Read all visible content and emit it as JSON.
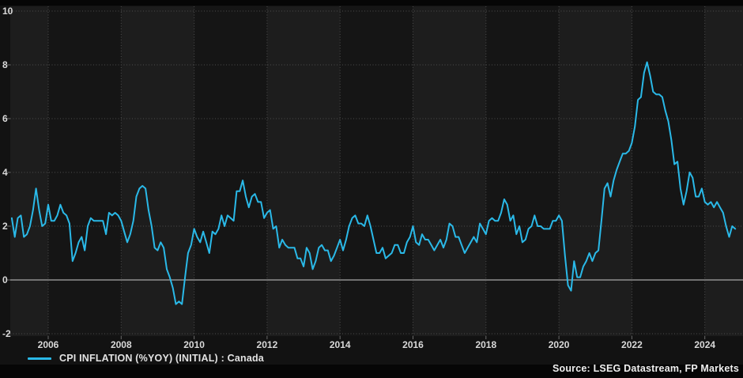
{
  "chart_data": {
    "type": "line",
    "title": "",
    "frequency": "monthly",
    "x_start": "2005-01",
    "x_end": "2024-11",
    "x_ticks": [
      2006,
      2008,
      2010,
      2012,
      2014,
      2016,
      2018,
      2020,
      2022,
      2024
    ],
    "y_ticks": [
      10,
      8,
      6,
      4,
      2,
      0,
      -2
    ],
    "ylim": [
      -2.7,
      10.3
    ],
    "grid": "dotted",
    "legend_position": "bottom-left",
    "series": [
      {
        "name": "CPI INFLATION (%YOY) (INITIAL) : Canada",
        "color": "#2ab9e8",
        "values": [
          2.3,
          1.6,
          2.3,
          2.4,
          1.6,
          1.7,
          2.0,
          2.6,
          3.4,
          2.6,
          2.0,
          2.1,
          2.8,
          2.2,
          2.2,
          2.4,
          2.8,
          2.5,
          2.4,
          2.1,
          0.7,
          1.0,
          1.4,
          1.6,
          1.1,
          2.0,
          2.3,
          2.2,
          2.2,
          2.2,
          2.2,
          1.7,
          2.5,
          2.4,
          2.5,
          2.4,
          2.2,
          1.8,
          1.4,
          1.7,
          2.2,
          3.1,
          3.4,
          3.5,
          3.4,
          2.6,
          2.0,
          1.2,
          1.1,
          1.4,
          1.2,
          0.4,
          0.1,
          -0.3,
          -0.9,
          -0.8,
          -0.9,
          0.1,
          1.0,
          1.3,
          1.9,
          1.6,
          1.4,
          1.8,
          1.4,
          1.0,
          1.8,
          1.7,
          1.9,
          2.4,
          2.0,
          2.4,
          2.3,
          2.2,
          3.3,
          3.3,
          3.7,
          3.1,
          2.7,
          3.1,
          3.2,
          2.9,
          2.9,
          2.3,
          2.5,
          2.6,
          1.9,
          2.0,
          1.2,
          1.5,
          1.3,
          1.2,
          1.2,
          1.2,
          0.8,
          0.8,
          0.5,
          1.2,
          1.0,
          0.4,
          0.7,
          1.2,
          1.3,
          1.1,
          1.1,
          0.7,
          0.9,
          1.2,
          1.5,
          1.1,
          1.5,
          2.0,
          2.3,
          2.4,
          2.1,
          2.1,
          2.0,
          2.4,
          2.0,
          1.5,
          1.0,
          1.0,
          1.2,
          0.8,
          0.9,
          1.0,
          1.3,
          1.3,
          1.0,
          1.0,
          1.4,
          1.6,
          2.0,
          1.4,
          1.3,
          1.7,
          1.5,
          1.5,
          1.3,
          1.1,
          1.3,
          1.5,
          1.2,
          1.5,
          2.1,
          2.0,
          1.6,
          1.6,
          1.3,
          1.0,
          1.2,
          1.4,
          1.6,
          1.4,
          2.1,
          1.9,
          1.7,
          2.2,
          2.3,
          2.2,
          2.2,
          2.5,
          3.0,
          2.8,
          2.2,
          2.4,
          1.7,
          2.0,
          1.4,
          1.5,
          1.9,
          2.0,
          2.4,
          2.0,
          2.0,
          1.9,
          1.9,
          1.9,
          2.2,
          2.2,
          2.4,
          2.2,
          0.9,
          -0.2,
          -0.4,
          0.7,
          0.1,
          0.1,
          0.5,
          0.7,
          1.0,
          0.7,
          1.0,
          1.1,
          2.2,
          3.4,
          3.6,
          3.1,
          3.7,
          4.1,
          4.4,
          4.7,
          4.7,
          4.8,
          5.1,
          5.7,
          6.7,
          6.8,
          7.7,
          8.1,
          7.6,
          7.0,
          6.9,
          6.9,
          6.8,
          6.3,
          5.9,
          5.2,
          4.3,
          4.4,
          3.4,
          2.8,
          3.3,
          4.0,
          3.8,
          3.1,
          3.1,
          3.4,
          2.9,
          2.8,
          2.9,
          2.7,
          2.9,
          2.7,
          2.5,
          2.0,
          1.6,
          2.0,
          1.9
        ]
      }
    ]
  },
  "source": {
    "text": "Source: LSEG Datastream, FP Markets"
  },
  "colors": {
    "background": "#121212",
    "band_light": "#1d1d1d",
    "band_dark": "#151515",
    "gridline": "#4d4d4d",
    "tick": "#6a6a6a",
    "zero_line": "#909090",
    "axis_text": "#d9d9d9",
    "line": "#2ab9e8",
    "legend_text": "#e3e3e3",
    "source_text": "#f0f0f0",
    "frame_strip": "#060606"
  }
}
